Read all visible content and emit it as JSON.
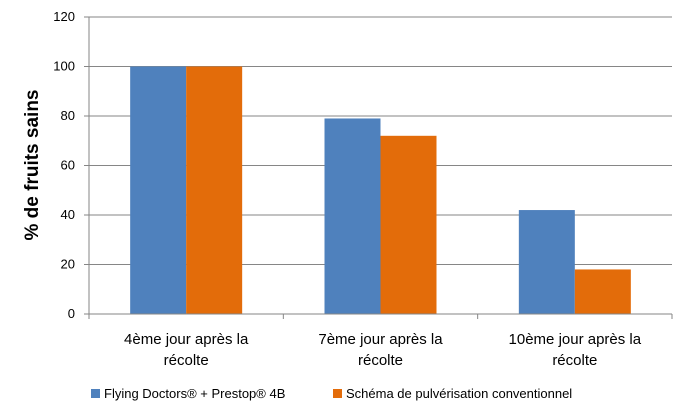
{
  "chart_data": {
    "type": "bar",
    "categories": [
      [
        "4ème jour après la",
        "récolte"
      ],
      [
        "7ème jour après la",
        "récolte"
      ],
      [
        "10ème jour après la",
        "récolte"
      ]
    ],
    "series": [
      {
        "name": "Flying Doctors® + Prestop® 4B",
        "color": "#4f81bd",
        "values": [
          100,
          79,
          42
        ]
      },
      {
        "name": "Schéma de pulvérisation conventionnel",
        "color": "#e36c0a",
        "values": [
          100,
          72,
          18
        ]
      }
    ],
    "ylabel": "% de fruits sains",
    "ylim": [
      0,
      120
    ],
    "yticks": [
      0,
      20,
      40,
      60,
      80,
      100,
      120
    ],
    "grid": true,
    "legend": "bottom"
  }
}
